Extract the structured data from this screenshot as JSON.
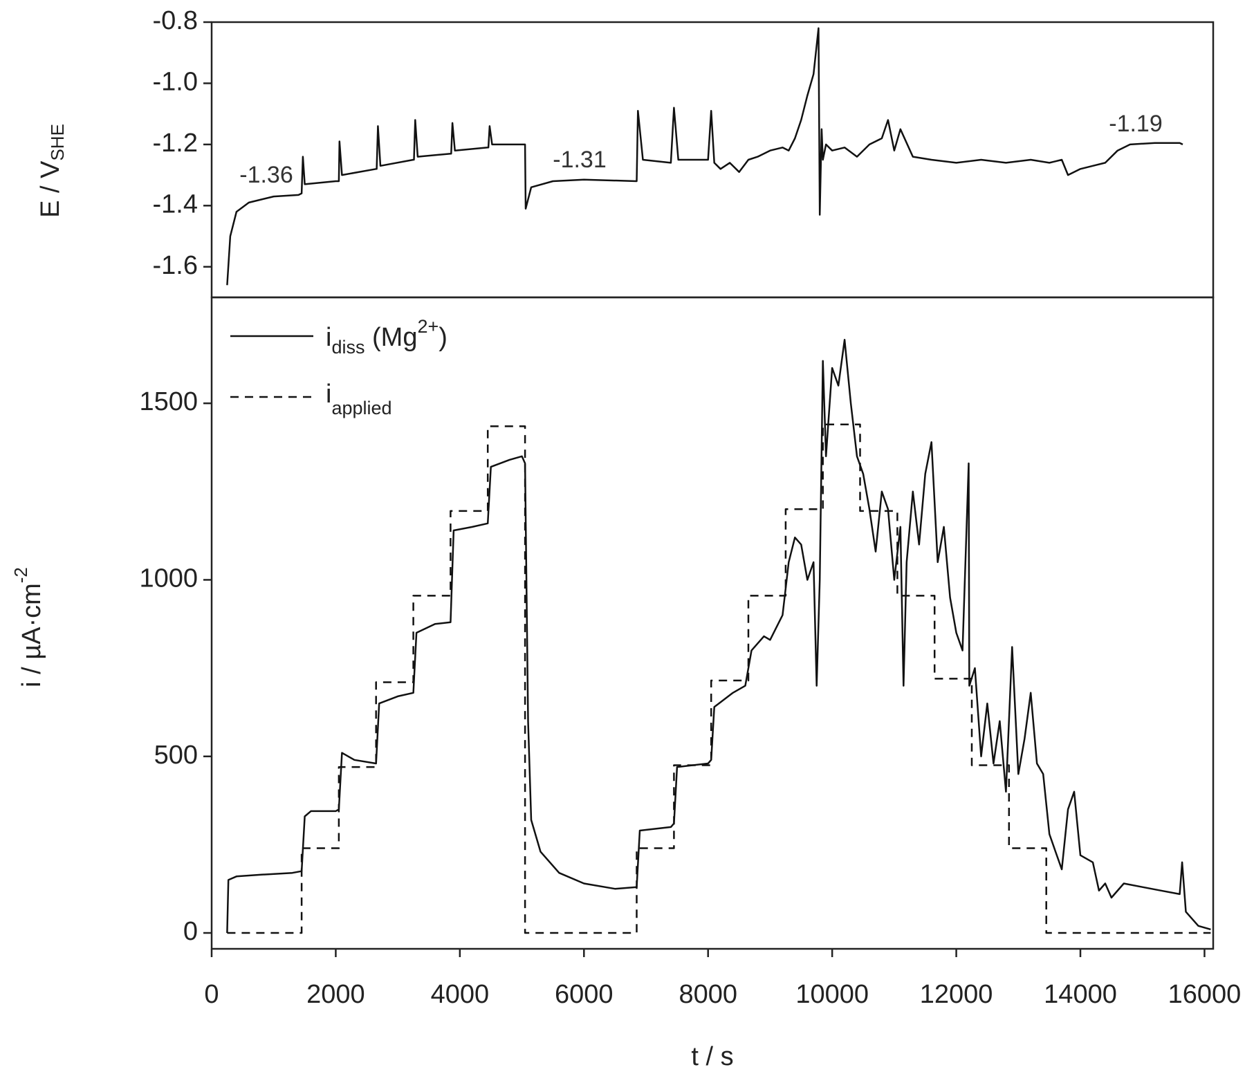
{
  "chart_data": [
    {
      "type": "line",
      "y_label": "E / V",
      "y_label_sub": "SHE",
      "xlim": [
        0,
        16140
      ],
      "ylim": [
        -1.7,
        -0.8
      ],
      "yticks": [
        -1.6,
        -1.4,
        -1.2,
        {
          "value": -1.0,
          "label": "-1.0"
        },
        -0.8
      ],
      "annotations": [
        "-1.36",
        "-1.31",
        "-1.19"
      ],
      "series": [
        {
          "color": "#111111",
          "line_style": "solid",
          "x": [
            250,
            300,
            400,
            600,
            1000,
            1400,
            1450,
            1470,
            1500,
            2000,
            2050,
            2060,
            2100,
            2650,
            2660,
            2680,
            2720,
            3250,
            3260,
            3280,
            3320,
            3850,
            3860,
            3880,
            3920,
            4450,
            4460,
            4480,
            4520,
            5040,
            5050,
            5060,
            5150,
            5500,
            6000,
            6850,
            6870,
            6950,
            7400,
            7450,
            7520,
            8000,
            8050,
            8100,
            8200,
            8350,
            8500,
            8650,
            8800,
            9000,
            9200,
            9300,
            9400,
            9500,
            9600,
            9700,
            9780,
            9800,
            9830,
            9850,
            9900,
            10000,
            10200,
            10400,
            10600,
            10800,
            10900,
            11000,
            11100,
            11300,
            11600,
            12000,
            12400,
            12800,
            13200,
            13500,
            13700,
            13800,
            14000,
            14200,
            14400,
            14600,
            14800,
            15200,
            15600,
            15650
          ],
          "values": [
            -1.66,
            -1.5,
            -1.42,
            -1.39,
            -1.37,
            -1.365,
            -1.36,
            -1.24,
            -1.33,
            -1.32,
            -1.32,
            -1.19,
            -1.3,
            -1.28,
            -1.28,
            -1.14,
            -1.27,
            -1.25,
            -1.25,
            -1.12,
            -1.24,
            -1.23,
            -1.23,
            -1.13,
            -1.22,
            -1.21,
            -1.21,
            -1.14,
            -1.2,
            -1.2,
            -1.2,
            -1.41,
            -1.34,
            -1.32,
            -1.315,
            -1.32,
            -1.09,
            -1.25,
            -1.26,
            -1.08,
            -1.25,
            -1.25,
            -1.09,
            -1.26,
            -1.28,
            -1.26,
            -1.29,
            -1.25,
            -1.24,
            -1.22,
            -1.21,
            -1.22,
            -1.18,
            -1.12,
            -1.04,
            -0.97,
            -0.82,
            -1.43,
            -1.15,
            -1.25,
            -1.2,
            -1.22,
            -1.21,
            -1.24,
            -1.2,
            -1.18,
            -1.12,
            -1.22,
            -1.15,
            -1.24,
            -1.25,
            -1.26,
            -1.25,
            -1.26,
            -1.25,
            -1.26,
            -1.25,
            -1.3,
            -1.28,
            -1.27,
            -1.26,
            -1.22,
            -1.2,
            -1.195,
            -1.195,
            -1.2
          ]
        }
      ]
    },
    {
      "type": "line",
      "x_label": "t / s",
      "y_label": "i / µA·cm",
      "y_label_sup": "-2",
      "xlim": [
        0,
        16140
      ],
      "ylim": [
        -45,
        1800
      ],
      "xticks": [
        0,
        2000,
        4000,
        6000,
        8000,
        10000,
        12000,
        14000,
        16000
      ],
      "yticks": [
        0,
        500,
        1000,
        1500
      ],
      "series": [
        {
          "name": "i",
          "name_sub": "diss",
          "name_suffix": " (Mg",
          "name_sup": "2+",
          "name_end": ")",
          "color": "#111111",
          "line_style": "solid",
          "x": [
            250,
            270,
            400,
            800,
            1300,
            1450,
            1500,
            1600,
            2000,
            2050,
            2100,
            2300,
            2650,
            2700,
            3000,
            3250,
            3300,
            3600,
            3850,
            3900,
            4200,
            4450,
            4500,
            4800,
            5000,
            5050,
            5100,
            5150,
            5300,
            5600,
            6000,
            6500,
            6850,
            6900,
            7400,
            7450,
            7500,
            8000,
            8050,
            8100,
            8400,
            8600,
            8700,
            8900,
            9000,
            9200,
            9300,
            9400,
            9500,
            9600,
            9700,
            9750,
            9800,
            9850,
            9900,
            10000,
            10100,
            10200,
            10300,
            10400,
            10500,
            10600,
            10700,
            10800,
            10900,
            11000,
            11100,
            11150,
            11200,
            11300,
            11400,
            11500,
            11600,
            11700,
            11800,
            11900,
            12000,
            12100,
            12200,
            12210,
            12300,
            12400,
            12500,
            12600,
            12700,
            12800,
            12900,
            13000,
            13100,
            13200,
            13300,
            13400,
            13500,
            13600,
            13700,
            13800,
            13900,
            14000,
            14200,
            14300,
            14400,
            14500,
            14700,
            15000,
            15300,
            15600,
            15640,
            15700,
            15900,
            16100
          ],
          "values": [
            0,
            150,
            160,
            165,
            170,
            175,
            330,
            345,
            345,
            350,
            510,
            490,
            480,
            650,
            670,
            680,
            850,
            875,
            880,
            1140,
            1150,
            1160,
            1320,
            1340,
            1350,
            1330,
            600,
            320,
            230,
            170,
            140,
            125,
            130,
            290,
            300,
            310,
            470,
            480,
            490,
            640,
            680,
            700,
            800,
            840,
            830,
            900,
            1050,
            1120,
            1100,
            1000,
            1050,
            700,
            1000,
            1620,
            1350,
            1600,
            1550,
            1680,
            1500,
            1350,
            1300,
            1200,
            1080,
            1250,
            1200,
            1000,
            1150,
            700,
            1050,
            1250,
            1100,
            1300,
            1390,
            1050,
            1150,
            950,
            850,
            800,
            1330,
            700,
            750,
            500,
            650,
            480,
            600,
            400,
            810,
            450,
            550,
            680,
            480,
            450,
            280,
            230,
            180,
            350,
            400,
            220,
            200,
            120,
            140,
            100,
            140,
            130,
            120,
            110,
            200,
            60,
            20,
            10
          ]
        },
        {
          "name": "i",
          "name_sub": "applied",
          "color": "#111111",
          "line_style": "dashed",
          "x": [
            250,
            1450,
            1450,
            2050,
            2050,
            2650,
            2650,
            3250,
            3250,
            3850,
            3850,
            4450,
            4450,
            5050,
            5050,
            6850,
            6850,
            7450,
            7450,
            8050,
            8050,
            8650,
            8650,
            9250,
            9250,
            9850,
            9850,
            10450,
            10450,
            11050,
            11050,
            11650,
            11650,
            12250,
            12250,
            12850,
            12850,
            13450,
            13450,
            16100
          ],
          "values": [
            0,
            0,
            240,
            240,
            470,
            470,
            710,
            710,
            955,
            955,
            1195,
            1195,
            1435,
            1435,
            0,
            0,
            240,
            240,
            475,
            475,
            715,
            715,
            955,
            955,
            1200,
            1200,
            1440,
            1440,
            1195,
            1195,
            955,
            955,
            720,
            720,
            475,
            475,
            240,
            240,
            0,
            0
          ]
        }
      ]
    }
  ]
}
